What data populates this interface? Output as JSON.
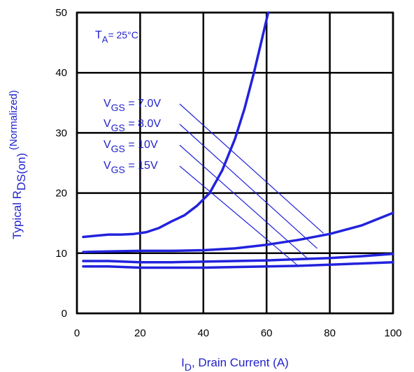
{
  "chart_data": {
    "type": "line",
    "title": "",
    "xlabel": {
      "main": "I",
      "sub": "D",
      "rest": ", Drain Current (A)"
    },
    "ylabel": {
      "main": "Typical  R",
      "sub": "DS(on)",
      "rest": " (Normalized)"
    },
    "xlim": [
      0,
      100
    ],
    "ylim": [
      0,
      50
    ],
    "x_ticks": [
      "0",
      "20",
      "40",
      "60",
      "80",
      "100"
    ],
    "y_ticks": [
      "0",
      "10",
      "20",
      "30",
      "40",
      "50"
    ],
    "grid": true,
    "condition": {
      "main": "T",
      "sub": "A",
      "rest": "= 25°C"
    },
    "series": [
      {
        "label": {
          "main": "V",
          "sub": "GS",
          "rest": " = 7.0V"
        },
        "points": [
          [
            2,
            12.7
          ],
          [
            6,
            12.9
          ],
          [
            10,
            13.1
          ],
          [
            14,
            13.1
          ],
          [
            18,
            13.2
          ],
          [
            22,
            13.5
          ],
          [
            26,
            14.2
          ],
          [
            30,
            15.3
          ],
          [
            34,
            16.3
          ],
          [
            38,
            17.9
          ],
          [
            42,
            20.0
          ],
          [
            46,
            23.8
          ],
          [
            50,
            29.0
          ],
          [
            53,
            34.0
          ],
          [
            56,
            40.0
          ],
          [
            58.5,
            45.5
          ],
          [
            60.5,
            50.0
          ]
        ]
      },
      {
        "label": {
          "main": "V",
          "sub": "GS",
          "rest": " = 8.0V"
        },
        "points": [
          [
            2,
            10.2
          ],
          [
            10,
            10.3
          ],
          [
            20,
            10.4
          ],
          [
            30,
            10.4
          ],
          [
            40,
            10.5
          ],
          [
            50,
            10.8
          ],
          [
            60,
            11.4
          ],
          [
            70,
            12.2
          ],
          [
            80,
            13.2
          ],
          [
            90,
            14.6
          ],
          [
            100,
            16.7
          ]
        ]
      },
      {
        "label": {
          "main": "V",
          "sub": "GS",
          "rest": " = 10V"
        },
        "points": [
          [
            2,
            8.7
          ],
          [
            10,
            8.7
          ],
          [
            15,
            8.6
          ],
          [
            20,
            8.5
          ],
          [
            30,
            8.5
          ],
          [
            40,
            8.6
          ],
          [
            50,
            8.7
          ],
          [
            60,
            8.8
          ],
          [
            70,
            9.0
          ],
          [
            80,
            9.2
          ],
          [
            90,
            9.5
          ],
          [
            100,
            9.9
          ]
        ]
      },
      {
        "label": {
          "main": "V",
          "sub": "GS",
          "rest": " = 15V"
        },
        "points": [
          [
            2,
            7.8
          ],
          [
            10,
            7.8
          ],
          [
            15,
            7.7
          ],
          [
            20,
            7.6
          ],
          [
            30,
            7.6
          ],
          [
            40,
            7.6
          ],
          [
            50,
            7.7
          ],
          [
            60,
            7.8
          ],
          [
            70,
            7.9
          ],
          [
            80,
            8.1
          ],
          [
            90,
            8.3
          ],
          [
            100,
            8.5
          ]
        ]
      }
    ],
    "callout_targets": [
      [
        78,
        13.3
      ],
      [
        76,
        10.8
      ],
      [
        73,
        9.1
      ],
      [
        70,
        7.9
      ]
    ],
    "colors": {
      "series": "#2222dd",
      "text": "#2222cc",
      "grid": "#000000"
    }
  }
}
